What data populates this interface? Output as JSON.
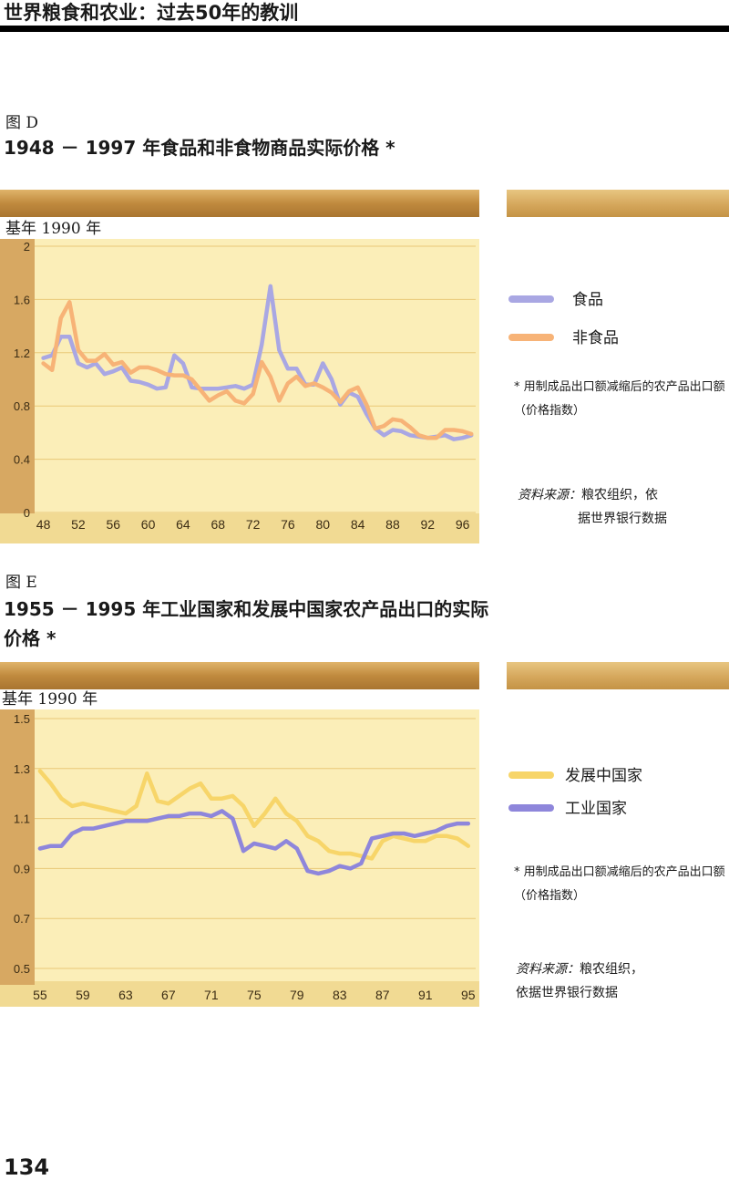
{
  "running_header": "世界粮食和农业：过去50年的教训",
  "page_number": "134",
  "figures": [
    {
      "label": "图 D",
      "title": "1948 － 1997 年食品和非食物商品实际价格 *",
      "base_label": "基年 1990 年",
      "legend": [
        {
          "label": "食品",
          "color": "#a9a7e3"
        },
        {
          "label": "非食品",
          "color": "#f7b377"
        }
      ],
      "note": "* 用制成品出口额减缩后的农产品出口额（价格指数）",
      "source_label": "资料来源：",
      "source_line1": "粮农组织，依",
      "source_line2": "据世界银行数据"
    },
    {
      "label": "图 E",
      "title": "1955 － 1995 年工业国家和发展中国家农产品出口的实际价格 *",
      "base_label": "基年 1990 年",
      "legend": [
        {
          "label": "发展中国家",
          "color": "#f7d569"
        },
        {
          "label": "工业国家",
          "color": "#8e86db"
        }
      ],
      "note": "* 用制成品出口额减缩后的农产品出口额（价格指数）",
      "source_label": "资料来源：",
      "source_line1": "粮农组织，",
      "source_line2": "依据世界银行数据"
    }
  ],
  "chart_data": [
    {
      "type": "line",
      "x": [
        1948,
        1949,
        1950,
        1951,
        1952,
        1953,
        1954,
        1955,
        1956,
        1957,
        1958,
        1959,
        1960,
        1961,
        1962,
        1963,
        1964,
        1965,
        1966,
        1967,
        1968,
        1969,
        1970,
        1971,
        1972,
        1973,
        1974,
        1975,
        1976,
        1977,
        1978,
        1979,
        1980,
        1981,
        1982,
        1983,
        1984,
        1985,
        1986,
        1987,
        1988,
        1989,
        1990,
        1991,
        1992,
        1993,
        1994,
        1995,
        1996,
        1997
      ],
      "series": [
        {
          "name": "食品",
          "color": "#a9a7e3",
          "values": [
            1.16,
            1.18,
            1.32,
            1.32,
            1.12,
            1.09,
            1.12,
            1.04,
            1.06,
            1.09,
            0.99,
            0.98,
            0.96,
            0.93,
            0.94,
            1.18,
            1.12,
            0.94,
            0.93,
            0.93,
            0.93,
            0.94,
            0.95,
            0.93,
            0.96,
            1.26,
            1.7,
            1.22,
            1.08,
            1.08,
            0.96,
            0.96,
            1.12,
            1.0,
            0.81,
            0.9,
            0.87,
            0.74,
            0.63,
            0.58,
            0.62,
            0.61,
            0.58,
            0.57,
            0.56,
            0.57,
            0.58,
            0.55,
            0.56,
            0.58
          ]
        },
        {
          "name": "非食品",
          "color": "#f7b377",
          "values": [
            1.12,
            1.07,
            1.46,
            1.58,
            1.22,
            1.14,
            1.14,
            1.19,
            1.11,
            1.13,
            1.05,
            1.09,
            1.09,
            1.07,
            1.04,
            1.03,
            1.03,
            1.0,
            0.92,
            0.84,
            0.88,
            0.91,
            0.84,
            0.82,
            0.89,
            1.13,
            1.02,
            0.84,
            0.97,
            1.02,
            0.95,
            0.97,
            0.94,
            0.9,
            0.83,
            0.91,
            0.94,
            0.81,
            0.63,
            0.65,
            0.7,
            0.69,
            0.64,
            0.58,
            0.56,
            0.56,
            0.62,
            0.62,
            0.61,
            0.59
          ]
        }
      ],
      "y_ticks": [
        "0",
        "0.4",
        "0.8",
        "1.2",
        "1.6",
        "2"
      ],
      "x_ticks": [
        "48",
        "52",
        "56",
        "60",
        "64",
        "68",
        "72",
        "76",
        "80",
        "84",
        "88",
        "92",
        "96"
      ],
      "ylim": [
        0,
        2
      ],
      "xlim": [
        1947,
        1997.5
      ],
      "grid": true
    },
    {
      "type": "line",
      "x": [
        1955,
        1956,
        1957,
        1958,
        1959,
        1960,
        1961,
        1962,
        1963,
        1964,
        1965,
        1966,
        1967,
        1968,
        1969,
        1970,
        1971,
        1972,
        1973,
        1974,
        1975,
        1976,
        1977,
        1978,
        1979,
        1980,
        1981,
        1982,
        1983,
        1984,
        1985,
        1986,
        1987,
        1988,
        1989,
        1990,
        1991,
        1992,
        1993,
        1994,
        1995
      ],
      "series": [
        {
          "name": "发展中国家",
          "color": "#f7d569",
          "values": [
            1.29,
            1.24,
            1.18,
            1.15,
            1.16,
            1.15,
            1.14,
            1.13,
            1.12,
            1.15,
            1.28,
            1.17,
            1.16,
            1.19,
            1.22,
            1.24,
            1.18,
            1.18,
            1.19,
            1.15,
            1.07,
            1.12,
            1.18,
            1.12,
            1.09,
            1.03,
            1.01,
            0.97,
            0.96,
            0.96,
            0.95,
            0.94,
            1.01,
            1.03,
            1.02,
            1.01,
            1.01,
            1.03,
            1.03,
            1.02,
            0.99
          ]
        },
        {
          "name": "工业国家",
          "color": "#8e86db",
          "values": [
            0.98,
            0.99,
            0.99,
            1.04,
            1.06,
            1.06,
            1.07,
            1.08,
            1.09,
            1.09,
            1.09,
            1.1,
            1.11,
            1.11,
            1.12,
            1.12,
            1.11,
            1.13,
            1.1,
            0.97,
            1.0,
            0.99,
            0.98,
            1.01,
            0.98,
            0.89,
            0.88,
            0.89,
            0.91,
            0.9,
            0.92,
            1.02,
            1.03,
            1.04,
            1.04,
            1.03,
            1.04,
            1.05,
            1.07,
            1.08,
            1.08
          ]
        }
      ],
      "y_ticks": [
        "0.5",
        "0.7",
        "0.9",
        "1.1",
        "1.3",
        "1.5"
      ],
      "x_ticks": [
        "55",
        "59",
        "63",
        "67",
        "71",
        "75",
        "79",
        "83",
        "87",
        "91",
        "95"
      ],
      "ylim": [
        0.5,
        1.5
      ],
      "xlim": [
        1954.5,
        1995.7
      ],
      "grid": true
    }
  ]
}
